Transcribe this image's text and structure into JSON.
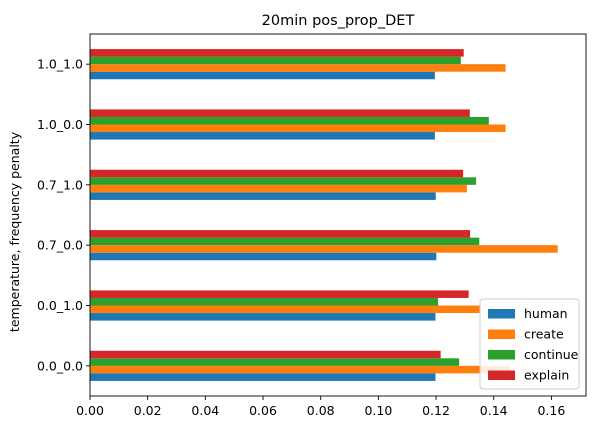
{
  "chart_data": {
    "type": "bar",
    "orientation": "horizontal",
    "title": "20min pos_prop_DET",
    "xlabel": "",
    "ylabel": "temperature, frequency penalty",
    "categories": [
      "0.0_0.0",
      "0.0_1.0",
      "0.7_0.0",
      "0.7_1.0",
      "1.0_0.0",
      "1.0_1.0"
    ],
    "xlim": [
      0,
      0.172
    ],
    "xticks": [
      "0.00",
      "0.02",
      "0.04",
      "0.06",
      "0.08",
      "0.10",
      "0.12",
      "0.14",
      "0.16"
    ],
    "grid": false,
    "legend_position": "lower-right",
    "series": [
      {
        "name": "human",
        "color": "#1f77b4",
        "values": [
          0.1198,
          0.1198,
          0.1201,
          0.1199,
          0.1196,
          0.1196
        ]
      },
      {
        "name": "create",
        "color": "#ff7f0e",
        "values": [
          0.1454,
          0.1355,
          0.1622,
          0.1307,
          0.1441,
          0.1441
        ]
      },
      {
        "name": "continue",
        "color": "#2ca02c",
        "values": [
          0.128,
          0.1207,
          0.135,
          0.1339,
          0.1383,
          0.1286
        ]
      },
      {
        "name": "explain",
        "color": "#d62728",
        "values": [
          0.1216,
          0.1313,
          0.1318,
          0.1294,
          0.1317,
          0.1296
        ]
      }
    ]
  }
}
